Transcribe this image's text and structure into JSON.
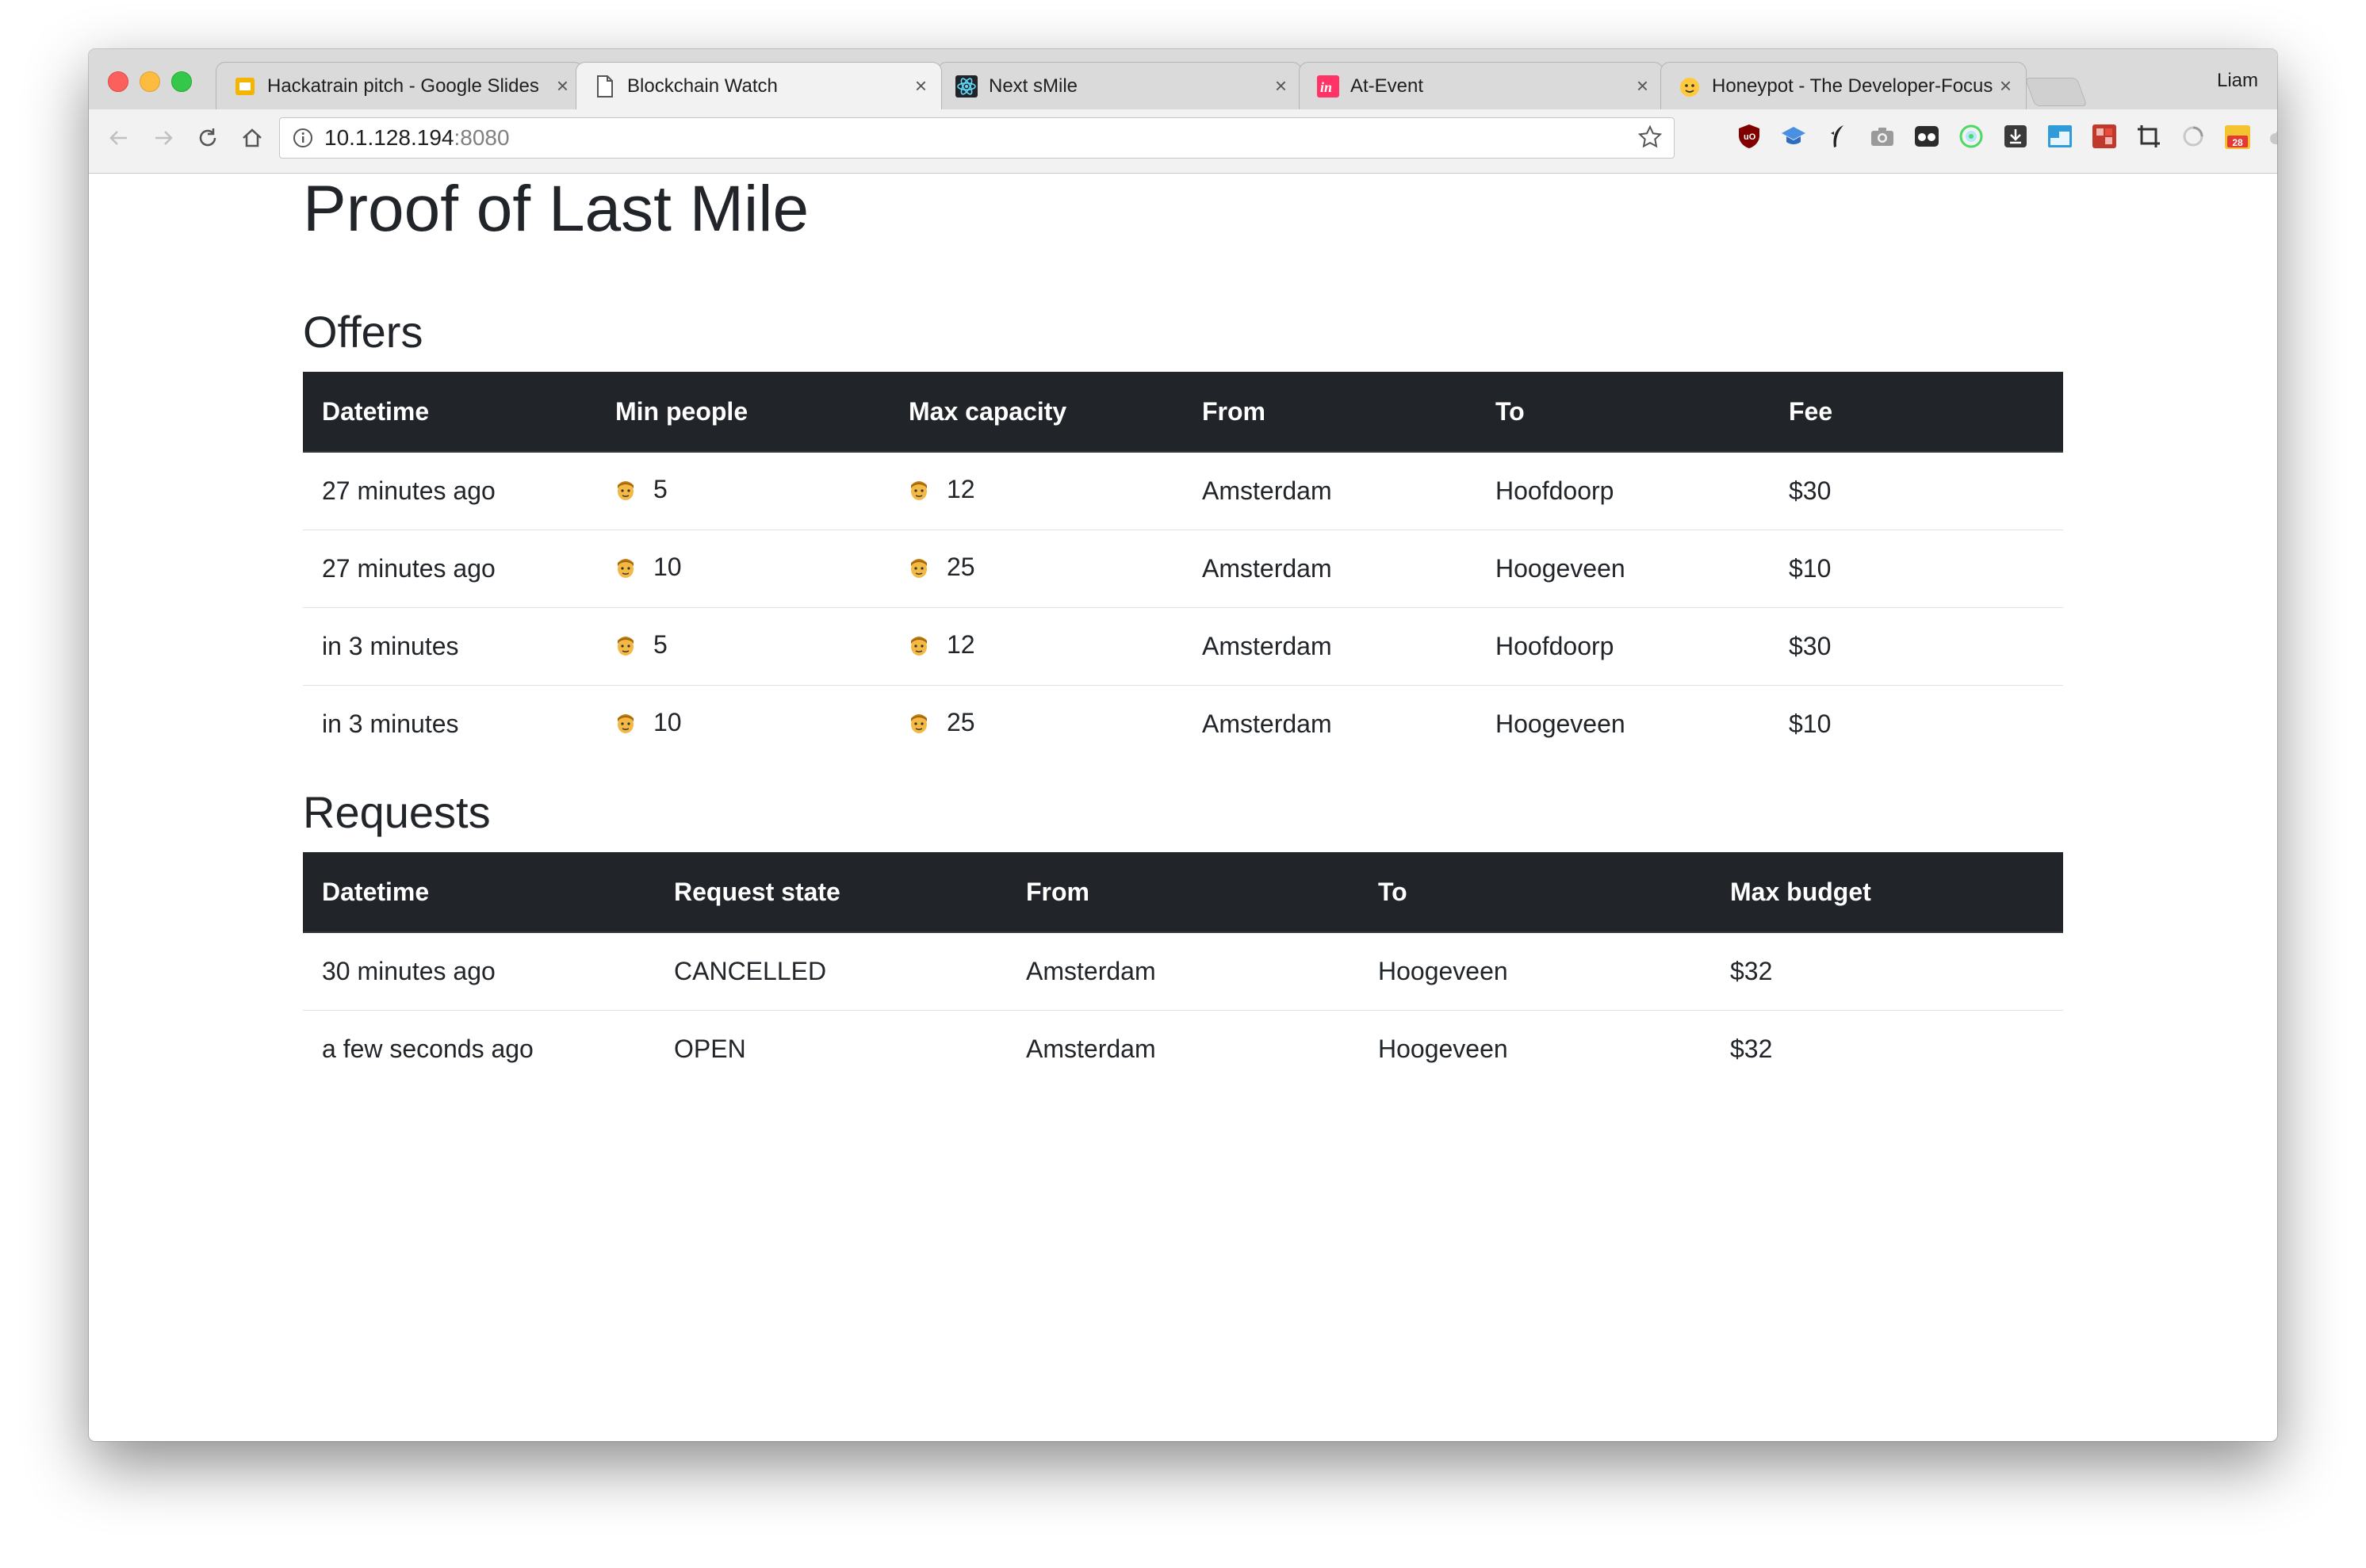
{
  "browser": {
    "profile_name": "Liam",
    "tabs": [
      {
        "title": "Hackatrain pitch - Google Slides",
        "favicon": "slides-icon",
        "active": false
      },
      {
        "title": "Blockchain Watch",
        "favicon": "document-icon",
        "active": true
      },
      {
        "title": "Next sMile",
        "favicon": "react-icon",
        "active": false
      },
      {
        "title": "At-Event",
        "favicon": "invision-icon",
        "active": false
      },
      {
        "title": "Honeypot - The Developer-Focused Job Platform",
        "favicon": "honeypot-icon",
        "active": false
      }
    ],
    "address": {
      "host": "10.1.128.194",
      "port": ":8080"
    },
    "calendar_badge": "28"
  },
  "page": {
    "title": "Proof of Last Mile",
    "offers": {
      "heading": "Offers",
      "columns": [
        "Datetime",
        "Min people",
        "Max capacity",
        "From",
        "To",
        "Fee"
      ],
      "rows": [
        {
          "datetime": "27 minutes ago",
          "min_people": "5",
          "max_capacity": "12",
          "from": "Amsterdam",
          "to": "Hoofdoorp",
          "fee": "$30"
        },
        {
          "datetime": "27 minutes ago",
          "min_people": "10",
          "max_capacity": "25",
          "from": "Amsterdam",
          "to": "Hoogeveen",
          "fee": "$10"
        },
        {
          "datetime": "in 3 minutes",
          "min_people": "5",
          "max_capacity": "12",
          "from": "Amsterdam",
          "to": "Hoofdoorp",
          "fee": "$30"
        },
        {
          "datetime": "in 3 minutes",
          "min_people": "10",
          "max_capacity": "25",
          "from": "Amsterdam",
          "to": "Hoogeveen",
          "fee": "$10"
        }
      ]
    },
    "requests": {
      "heading": "Requests",
      "columns": [
        "Datetime",
        "Request state",
        "From",
        "To",
        "Max budget"
      ],
      "rows": [
        {
          "datetime": "30 minutes ago",
          "state": "CANCELLED",
          "from": "Amsterdam",
          "to": "Hoogeveen",
          "max_budget": "$32"
        },
        {
          "datetime": "a few seconds ago",
          "state": "OPEN",
          "from": "Amsterdam",
          "to": "Hoogeveen",
          "max_budget": "$32"
        }
      ]
    }
  },
  "colors": {
    "table_header_bg": "#212529",
    "text": "#212529",
    "person_emoji": "#f4b942"
  }
}
